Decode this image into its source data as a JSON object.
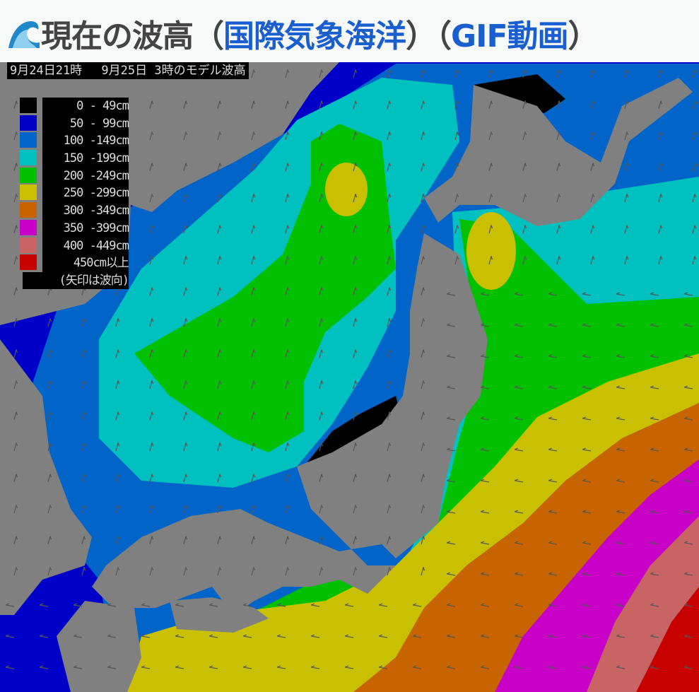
{
  "header": {
    "icon": "water-wave-icon",
    "title_prefix": "現在の波高（",
    "link1": "国際気象海洋",
    "mid": "）（",
    "link2": "GIF動画",
    "suffix": "）"
  },
  "map": {
    "timestamp": "9月24日21時　 9月25日 3時のモデル波高",
    "legend": [
      {
        "label": "0 - 49cm",
        "color": "#000000"
      },
      {
        "label": "50 - 99cm",
        "color": "#0000c8"
      },
      {
        "label": "100 -149cm",
        "color": "#0064c8"
      },
      {
        "label": "150 -199cm",
        "color": "#00c0c0"
      },
      {
        "label": "200 -249cm",
        "color": "#00c000"
      },
      {
        "label": "250 -299cm",
        "color": "#c8c000"
      },
      {
        "label": "300 -349cm",
        "color": "#c86400"
      },
      {
        "label": "350 -399cm",
        "color": "#c800c8"
      },
      {
        "label": "400 -449cm",
        "color": "#c86464"
      },
      {
        "label": "450cm以上",
        "color": "#c80000"
      }
    ],
    "legend_note": "(矢印は波向)",
    "land_color": "#808080"
  }
}
